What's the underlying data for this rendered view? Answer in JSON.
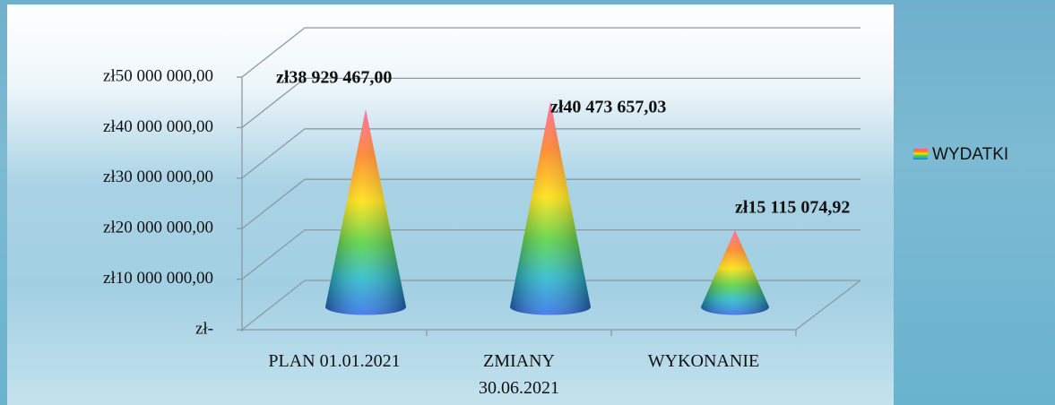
{
  "chart_data": {
    "type": "bar",
    "categories": [
      "PLAN 01.01.2021",
      "ZMIANY\n30.06.2021",
      "WYKONANIE"
    ],
    "series": [
      {
        "name": "WYDATKI",
        "values": [
          38929467.0,
          40473657.03,
          15115074.92
        ],
        "value_labels": [
          "zł38 929 467,00",
          "zł40 473 657,03",
          "zł15 115 074,92"
        ]
      }
    ],
    "ylim": [
      0,
      50000000
    ],
    "yticks": [
      {
        "value": 0,
        "label": "zł-"
      },
      {
        "value": 10000000,
        "label": "zł10 000 000,00"
      },
      {
        "value": 20000000,
        "label": "zł20 000 000,00"
      },
      {
        "value": 30000000,
        "label": "zł30 000 000,00"
      },
      {
        "value": 40000000,
        "label": "zł40 000 000,00"
      },
      {
        "value": 50000000,
        "label": "zł50 000 000,00"
      }
    ],
    "grid": true,
    "legend": "right"
  }
}
